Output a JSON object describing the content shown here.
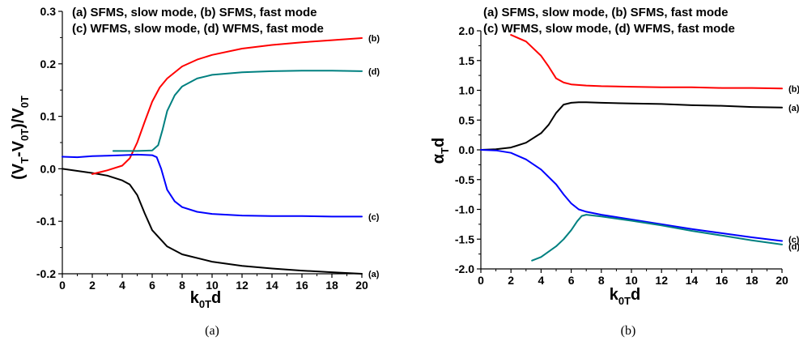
{
  "chart_data": [
    {
      "type": "line",
      "caption": "(a)",
      "legend": [
        "(a) SFMS, slow mode, (b) SFMS, fast mode",
        "(c) WFMS, slow mode, (d) WFMS, fast mode"
      ],
      "xlabel": {
        "main": "k",
        "sub": "0T",
        "tail": "d"
      },
      "ylabel": {
        "parts": [
          [
            "(V",
            ""
          ],
          [
            "T",
            "sub"
          ],
          [
            "-V",
            ""
          ],
          [
            "0T",
            "sub"
          ],
          [
            ")/V",
            ""
          ],
          [
            "0T",
            "sub"
          ]
        ]
      },
      "xlim": [
        0,
        20
      ],
      "ylim": [
        -0.2,
        0.3
      ],
      "xticks": [
        0,
        2,
        4,
        6,
        8,
        10,
        12,
        14,
        16,
        18,
        20
      ],
      "yticks": [
        -0.2,
        -0.1,
        0.0,
        0.1,
        0.2,
        0.3
      ],
      "ytick_labels": [
        "-0.2",
        "-0.1",
        "0.0",
        "0.1",
        "0.2",
        "0.3"
      ],
      "series": [
        {
          "label": "(a)",
          "color": "#000000",
          "x": [
            0,
            1,
            2,
            3,
            4,
            4.5,
            5,
            5.5,
            6,
            7,
            8,
            10,
            12,
            14,
            16,
            18,
            20
          ],
          "y": [
            0.0,
            -0.004,
            -0.008,
            -0.013,
            -0.022,
            -0.03,
            -0.05,
            -0.085,
            -0.117,
            -0.148,
            -0.163,
            -0.177,
            -0.185,
            -0.19,
            -0.194,
            -0.197,
            -0.2
          ]
        },
        {
          "label": "(b)",
          "color": "#ff0000",
          "x": [
            2,
            3,
            4,
            4.5,
            5,
            5.5,
            6,
            6.5,
            7,
            8,
            9,
            10,
            12,
            14,
            16,
            18,
            20
          ],
          "y": [
            -0.01,
            -0.003,
            0.006,
            0.02,
            0.05,
            0.09,
            0.128,
            0.155,
            0.172,
            0.195,
            0.208,
            0.217,
            0.229,
            0.236,
            0.241,
            0.245,
            0.249
          ]
        },
        {
          "label": "(c)",
          "color": "#0000ff",
          "x": [
            0,
            1,
            2,
            3,
            4,
            5,
            6,
            6.3,
            6.6,
            7,
            7.5,
            8,
            9,
            10,
            12,
            14,
            16,
            18,
            20
          ],
          "y": [
            0.023,
            0.022,
            0.024,
            0.025,
            0.026,
            0.027,
            0.026,
            0.022,
            0.0,
            -0.04,
            -0.062,
            -0.073,
            -0.082,
            -0.086,
            -0.089,
            -0.09,
            -0.09,
            -0.091,
            -0.091
          ]
        },
        {
          "label": "(d)",
          "color": "#008080",
          "x": [
            3.4,
            4,
            5,
            6,
            6.4,
            6.7,
            7,
            7.5,
            8,
            9,
            10,
            12,
            14,
            16,
            18,
            20
          ],
          "y": [
            0.034,
            0.034,
            0.034,
            0.035,
            0.045,
            0.075,
            0.11,
            0.14,
            0.157,
            0.172,
            0.179,
            0.184,
            0.186,
            0.187,
            0.187,
            0.186
          ]
        }
      ]
    },
    {
      "type": "line",
      "caption": "(b)",
      "legend": [
        "(a) SFMS, slow mode, (b) SFMS, fast mode",
        "(c) WFMS, slow mode, (d) WFMS, fast mode"
      ],
      "xlabel": {
        "main": "k",
        "sub": "0T",
        "tail": "d"
      },
      "ylabel": {
        "parts": [
          [
            "α",
            ""
          ],
          [
            "T",
            "sub"
          ],
          [
            "d",
            ""
          ]
        ]
      },
      "xlim": [
        0,
        20
      ],
      "ylim": [
        -2.0,
        2.0
      ],
      "xticks": [
        0,
        2,
        4,
        6,
        8,
        10,
        12,
        14,
        16,
        18,
        20
      ],
      "yticks": [
        -2.0,
        -1.5,
        -1.0,
        -0.5,
        0.0,
        0.5,
        1.0,
        1.5,
        2.0
      ],
      "ytick_labels": [
        "-2.0",
        "-1.5",
        "-1.0",
        "-0.5",
        "0.0",
        "0.5",
        "1.0",
        "1.5",
        "2.0"
      ],
      "series": [
        {
          "label": "(b)",
          "color": "#ff0000",
          "x": [
            2,
            3,
            4,
            4.5,
            5,
            5.5,
            6,
            7,
            8,
            10,
            12,
            14,
            16,
            18,
            20
          ],
          "y": [
            1.93,
            1.82,
            1.58,
            1.4,
            1.2,
            1.13,
            1.1,
            1.08,
            1.07,
            1.06,
            1.05,
            1.05,
            1.04,
            1.04,
            1.03
          ]
        },
        {
          "label": "(a)",
          "color": "#000000",
          "x": [
            0,
            1,
            2,
            3,
            4,
            4.5,
            5,
            5.5,
            6,
            6.5,
            7,
            8,
            10,
            12,
            14,
            16,
            18,
            20
          ],
          "y": [
            0.0,
            0.01,
            0.04,
            0.12,
            0.28,
            0.42,
            0.62,
            0.76,
            0.79,
            0.8,
            0.8,
            0.79,
            0.78,
            0.77,
            0.75,
            0.74,
            0.72,
            0.71
          ]
        },
        {
          "label": "(c)",
          "color": "#0000ff",
          "x": [
            0,
            1,
            2,
            3,
            4,
            5,
            5.5,
            6,
            6.5,
            7,
            8,
            10,
            12,
            14,
            16,
            18,
            20
          ],
          "y": [
            0.0,
            -0.01,
            -0.05,
            -0.16,
            -0.33,
            -0.58,
            -0.75,
            -0.9,
            -1.0,
            -1.04,
            -1.09,
            -1.17,
            -1.25,
            -1.33,
            -1.4,
            -1.47,
            -1.53
          ]
        },
        {
          "label": "(d)",
          "color": "#008080",
          "x": [
            3.4,
            4,
            5,
            5.5,
            6,
            6.4,
            6.7,
            7,
            8,
            10,
            12,
            14,
            16,
            18,
            20
          ],
          "y": [
            -1.86,
            -1.8,
            -1.62,
            -1.5,
            -1.35,
            -1.2,
            -1.11,
            -1.09,
            -1.12,
            -1.19,
            -1.27,
            -1.36,
            -1.44,
            -1.52,
            -1.59
          ]
        }
      ]
    }
  ]
}
